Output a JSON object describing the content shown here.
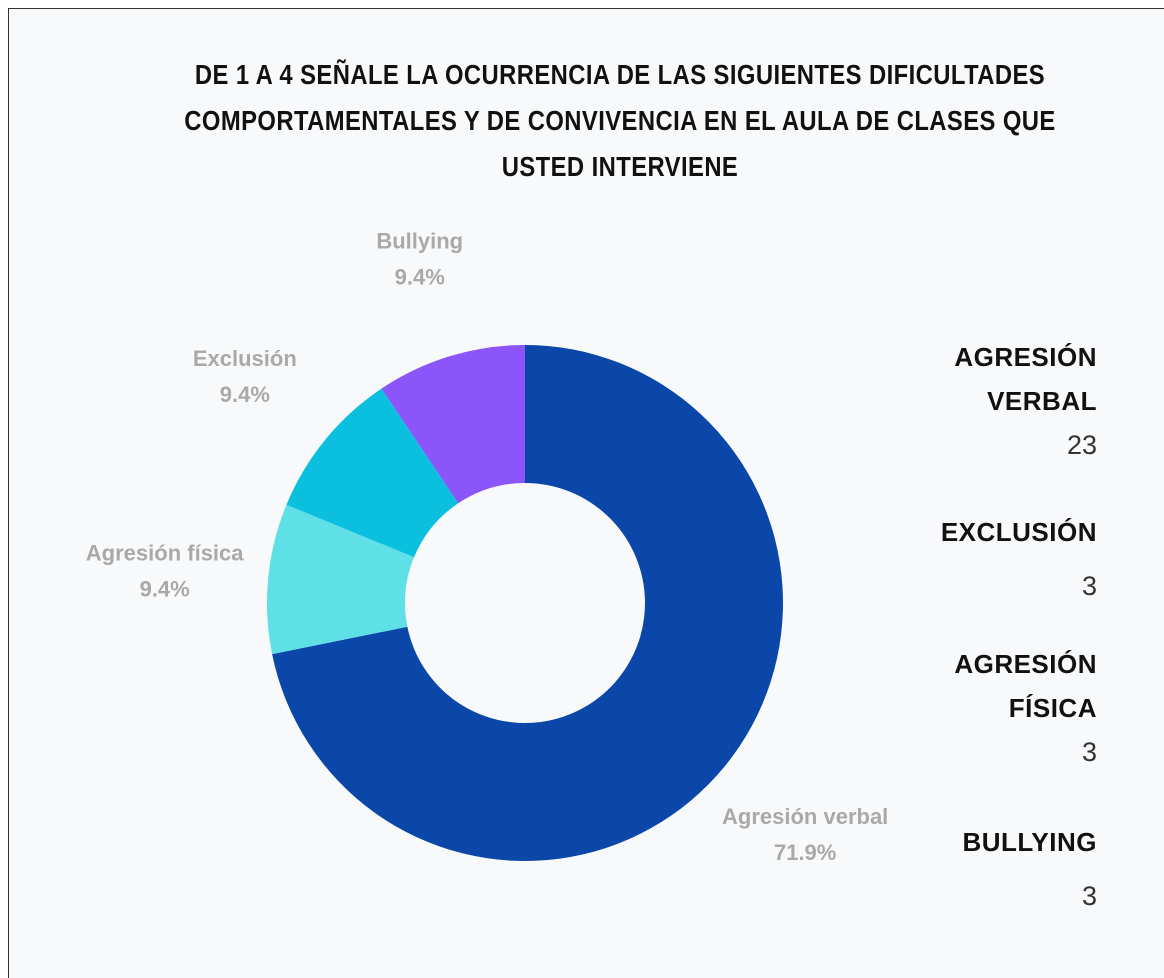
{
  "chart_data": {
    "type": "donut",
    "title": "DE 1 A 4 SEÑALE LA OCURRENCIA DE LAS SIGUIENTES DIFICULTADES COMPORTAMENTALES Y DE CONVIVENCIA EN EL AULA DE CLASES QUE USTED INTERVIENE",
    "categories": [
      "Agresión verbal",
      "Agresión física",
      "Exclusión",
      "Bullying"
    ],
    "values": [
      71.9,
      9.4,
      9.4,
      9.4
    ],
    "value_labels": [
      "71.9%",
      "9.4%",
      "9.4%",
      "9.4%"
    ],
    "colors": [
      "#0a47a9",
      "#5ee0e6",
      "#0bc0df",
      "#8b55f9"
    ],
    "legend": [
      {
        "name": "AGRESIÓN VERBAL",
        "count": 23
      },
      {
        "name": "EXCLUSIÓN",
        "count": 3
      },
      {
        "name": "AGRESIÓN FÍSICA",
        "count": 3
      },
      {
        "name": "BULLYING",
        "count": 3
      }
    ]
  }
}
